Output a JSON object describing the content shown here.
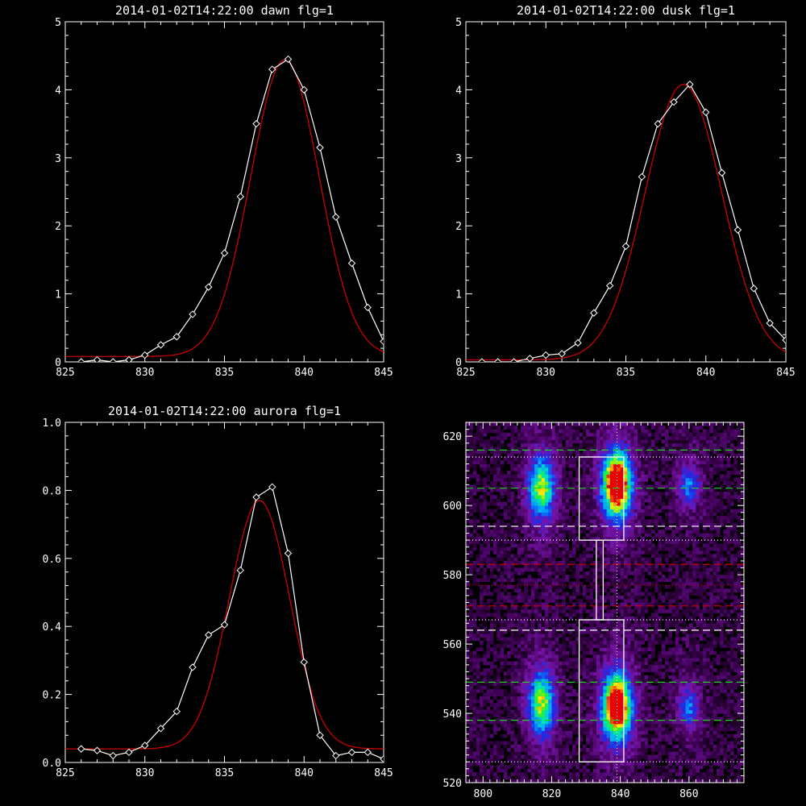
{
  "chart_data": [
    {
      "type": "line",
      "title": "2014-01-02T14:22:00 dawn flg=1",
      "xlim": [
        825,
        845
      ],
      "ylim": [
        0,
        5
      ],
      "x_ticks": [
        "825",
        "830",
        "835",
        "840",
        "845"
      ],
      "y_ticks": [
        "0",
        "1",
        "2",
        "3",
        "4",
        "5"
      ],
      "series": [
        {
          "kind": "data",
          "color": "#ffffff",
          "marker": "diamond",
          "x": [
            826,
            827,
            828,
            829,
            830,
            831,
            832,
            833,
            834,
            835,
            836,
            837,
            838,
            839,
            840,
            841,
            842,
            843,
            844,
            845
          ],
          "y": [
            0.0,
            0.03,
            0.0,
            0.03,
            0.1,
            0.25,
            0.37,
            0.7,
            1.1,
            1.6,
            2.43,
            3.5,
            4.3,
            4.45,
            4.0,
            3.15,
            2.13,
            1.45,
            0.8,
            0.3
          ]
        },
        {
          "kind": "fit",
          "color": "#cc0000",
          "function": "gaussian",
          "amplitude": 4.36,
          "center": 838.8,
          "sigma": 2.15,
          "offset": 0.08
        }
      ]
    },
    {
      "type": "line",
      "title": "2014-01-02T14:22:00 dusk flg=1",
      "xlim": [
        825,
        845
      ],
      "ylim": [
        0,
        5
      ],
      "x_ticks": [
        "825",
        "830",
        "835",
        "840",
        "845"
      ],
      "y_ticks": [
        "0",
        "1",
        "2",
        "3",
        "4",
        "5"
      ],
      "series": [
        {
          "kind": "data",
          "color": "#ffffff",
          "marker": "diamond",
          "x": [
            826,
            827,
            828,
            829,
            830,
            831,
            832,
            833,
            834,
            835,
            836,
            837,
            838,
            839,
            840,
            841,
            842,
            843,
            844,
            845
          ],
          "y": [
            0.0,
            0.0,
            0.0,
            0.05,
            0.1,
            0.12,
            0.28,
            0.72,
            1.12,
            1.7,
            2.72,
            3.5,
            3.82,
            4.08,
            3.67,
            2.78,
            1.94,
            1.08,
            0.57,
            0.32
          ]
        },
        {
          "kind": "fit",
          "color": "#cc0000",
          "function": "gaussian",
          "amplitude": 4.05,
          "center": 838.6,
          "sigma": 2.4,
          "offset": 0.03
        }
      ]
    },
    {
      "type": "line",
      "title": "2014-01-02T14:22:00 aurora flg=1",
      "xlim": [
        825,
        845
      ],
      "ylim": [
        0,
        1.0
      ],
      "x_ticks": [
        "825",
        "830",
        "835",
        "840",
        "845"
      ],
      "y_ticks": [
        "0.0",
        "0.2",
        "0.4",
        "0.6",
        "0.8",
        "1.0"
      ],
      "series": [
        {
          "kind": "data",
          "color": "#ffffff",
          "marker": "diamond",
          "x": [
            826,
            827,
            828,
            829,
            830,
            831,
            832,
            833,
            834,
            835,
            836,
            837,
            838,
            839,
            840,
            841,
            842,
            843,
            844,
            845
          ],
          "y": [
            0.04,
            0.035,
            0.02,
            0.03,
            0.05,
            0.1,
            0.15,
            0.28,
            0.375,
            0.405,
            0.565,
            0.78,
            0.81,
            0.615,
            0.295,
            0.08,
            0.02,
            0.03,
            0.03,
            0.01
          ]
        },
        {
          "kind": "fit",
          "color": "#cc0000",
          "function": "gaussian",
          "amplitude": 0.73,
          "center": 837.2,
          "sigma": 1.9,
          "offset": 0.04
        }
      ]
    },
    {
      "type": "heatmap",
      "title": "",
      "xlim": [
        795,
        876
      ],
      "ylim": [
        520,
        624
      ],
      "x_ticks": [
        "800",
        "820",
        "840",
        "860"
      ],
      "y_ticks": [
        "520",
        "540",
        "560",
        "580",
        "600",
        "620"
      ],
      "colormap": "rainbow",
      "blobs": [
        {
          "x": 817,
          "y": 605,
          "sx": 2.6,
          "sy": 6,
          "amp": 0.62
        },
        {
          "x": 817,
          "y": 543,
          "sx": 2.6,
          "sy": 6,
          "amp": 0.62
        },
        {
          "x": 839,
          "y": 606,
          "sx": 2.8,
          "sy": 6,
          "amp": 1.0
        },
        {
          "x": 839,
          "y": 542,
          "sx": 2.8,
          "sy": 6,
          "amp": 1.0
        },
        {
          "x": 860,
          "y": 606,
          "sx": 2.2,
          "sy": 4,
          "amp": 0.35
        },
        {
          "x": 860,
          "y": 542,
          "sx": 2.2,
          "sy": 4,
          "amp": 0.35
        }
      ],
      "vertical_marker_x": 839,
      "hlines": [
        {
          "y": 616,
          "color": "#22cc22",
          "style": "dashed"
        },
        {
          "y": 605,
          "color": "#22cc22",
          "style": "dashed"
        },
        {
          "y": 594,
          "color": "#ffffff",
          "style": "dashed"
        },
        {
          "y": 583,
          "color": "#cc0000",
          "style": "dashed"
        },
        {
          "y": 571,
          "color": "#cc0000",
          "style": "dashed"
        },
        {
          "y": 564,
          "color": "#ffffff",
          "style": "dashed"
        },
        {
          "y": 549,
          "color": "#22cc22",
          "style": "dashed"
        },
        {
          "y": 538,
          "color": "#22cc22",
          "style": "dashed"
        },
        {
          "y": 614,
          "color": "#ffffff",
          "style": "dotted"
        },
        {
          "y": 590,
          "color": "#ffffff",
          "style": "dotted"
        },
        {
          "y": 567,
          "color": "#ffffff",
          "style": "dotted"
        },
        {
          "y": 526,
          "color": "#ffffff",
          "style": "dotted"
        },
        {
          "y": 577,
          "color": "#cc0000",
          "style": "dotted"
        }
      ],
      "boxes": [
        {
          "x1": 828,
          "x2": 841,
          "y1": 590,
          "y2": 614
        },
        {
          "x1": 828,
          "x2": 841,
          "y1": 526,
          "y2": 567
        },
        {
          "x1": 833,
          "x2": 835,
          "y1": 567,
          "y2": 590
        }
      ]
    }
  ]
}
